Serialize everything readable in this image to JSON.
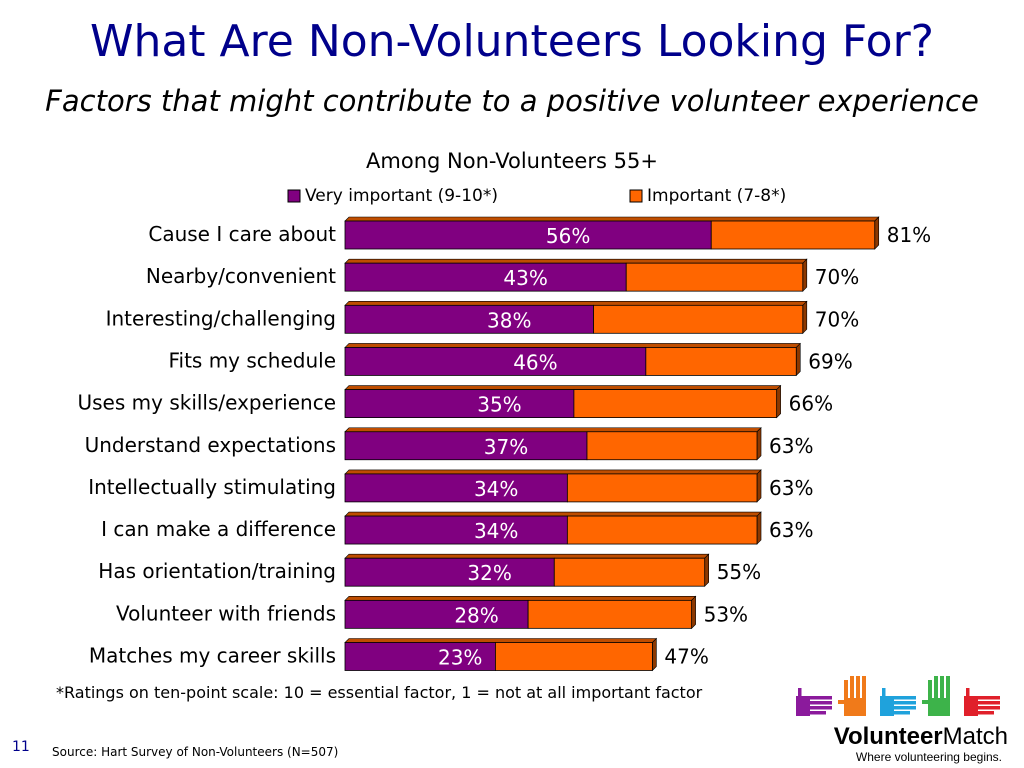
{
  "slide": {
    "title": "What Are Non-Volunteers Looking For?",
    "subtitle": "Factors that might contribute to a positive volunteer experience",
    "footnote": "*Ratings on ten-point scale: 10 = essential factor, 1 = not at all important factor",
    "page_number": "11",
    "source": "Source: Hart Survey of Non-Volunteers (N=507)"
  },
  "logo": {
    "brand_bold": "Volunteer",
    "brand_regular": "Match",
    "tagline": "Where volunteering begins.",
    "colors": [
      "#8b1a9c",
      "#f07a1a",
      "#1fa2dc",
      "#3db34a",
      "#e0202a"
    ]
  },
  "chart_data": {
    "type": "bar",
    "orientation": "horizontal",
    "stacked": true,
    "title": "Among Non-Volunteers 55+",
    "xlim": [
      0,
      100
    ],
    "categories": [
      "Cause I care about",
      "Nearby/convenient",
      "Interesting/challenging",
      "Fits my schedule",
      "Uses my skills/experience",
      "Understand expectations",
      "Intellectually stimulating",
      "I can make a difference",
      "Has orientation/training",
      "Volunteer with friends",
      "Matches my career skills"
    ],
    "series": [
      {
        "name": "Very important (9-10*)",
        "color": "#800080",
        "values": [
          56,
          43,
          38,
          46,
          35,
          37,
          34,
          34,
          32,
          28,
          23
        ],
        "labels": [
          "56%",
          "43%",
          "38%",
          "46%",
          "35%",
          "37%",
          "34%",
          "34%",
          "32%",
          "28%",
          "23%"
        ]
      },
      {
        "name": "Important (7-8*)",
        "color": "#ff6600",
        "values": [
          25,
          27,
          32,
          23,
          31,
          26,
          29,
          29,
          23,
          25,
          24
        ]
      }
    ],
    "totals": [
      81,
      70,
      70,
      69,
      66,
      63,
      63,
      63,
      55,
      53,
      47
    ],
    "total_labels": [
      "81%",
      "70%",
      "70%",
      "69%",
      "66%",
      "63%",
      "63%",
      "63%",
      "55%",
      "53%",
      "47%"
    ],
    "legend_position": "top",
    "grid": false
  }
}
